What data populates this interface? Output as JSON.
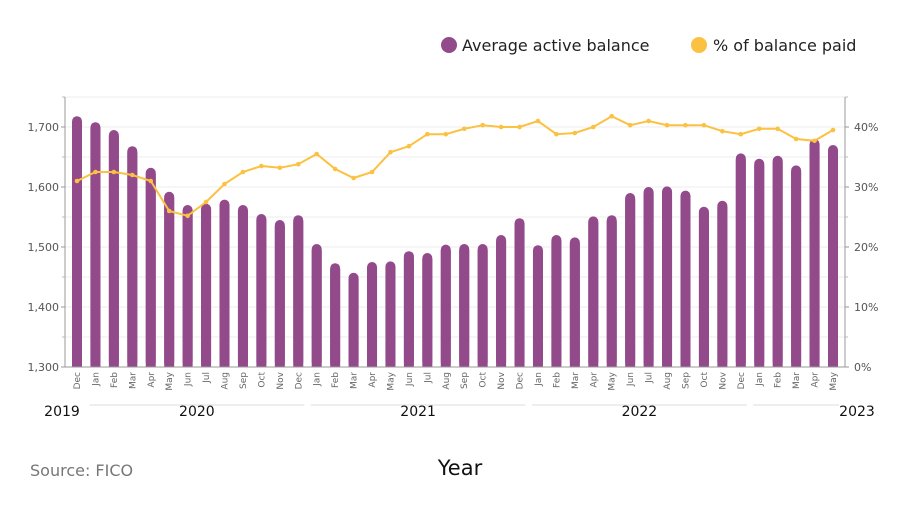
{
  "chart_data": {
    "type": "bar+line",
    "xlabel": "Year",
    "source": "Source: FICO",
    "legend_position": "top-right",
    "grid": true,
    "months": [
      "Dec",
      "Jan",
      "Feb",
      "Mar",
      "Apr",
      "May",
      "Jun",
      "Jul",
      "Aug",
      "Sep",
      "Oct",
      "Nov",
      "Dec",
      "Jan",
      "Feb",
      "Mar",
      "Apr",
      "May",
      "Jun",
      "Jul",
      "Aug",
      "Sep",
      "Oct",
      "Nov",
      "Dec",
      "Jan",
      "Feb",
      "Mar",
      "Apr",
      "May",
      "Jun",
      "Jul",
      "Aug",
      "Sep",
      "Oct",
      "Nov",
      "Dec",
      "Jan",
      "Feb",
      "Mar",
      "Apr",
      "May"
    ],
    "years": [
      {
        "label": "2019",
        "start": 0,
        "end": 0
      },
      {
        "label": "2020",
        "start": 1,
        "end": 12
      },
      {
        "label": "2021",
        "start": 13,
        "end": 24
      },
      {
        "label": "2022",
        "start": 25,
        "end": 36
      },
      {
        "label": "2023",
        "start": 37,
        "end": 41
      }
    ],
    "left_axis": {
      "min": 1300,
      "max": 1700,
      "ticks": [
        "1,300",
        "1,400",
        "1,500",
        "1,600",
        "1,700"
      ],
      "tick_values": [
        1300,
        1400,
        1500,
        1600,
        1700
      ]
    },
    "right_axis": {
      "min": 0,
      "max": 40,
      "ticks": [
        "0%",
        "10%",
        "20%",
        "30%",
        "40%"
      ],
      "tick_values": [
        0,
        10,
        20,
        30,
        40
      ]
    },
    "series": [
      {
        "name": "Average active balance",
        "type": "bar",
        "axis": "left",
        "color": "#924a8a",
        "values": [
          1718,
          1708,
          1695,
          1668,
          1632,
          1592,
          1570,
          1572,
          1579,
          1570,
          1555,
          1545,
          1553,
          1505,
          1473,
          1457,
          1475,
          1476,
          1493,
          1490,
          1504,
          1505,
          1505,
          1520,
          1548,
          1503,
          1520,
          1516,
          1551,
          1553,
          1590,
          1600,
          1601,
          1594,
          1567,
          1577,
          1656,
          1647,
          1652,
          1636,
          1680,
          1670
        ]
      },
      {
        "name": "% of balance paid",
        "type": "line",
        "axis": "right",
        "color": "#fbc140",
        "values": [
          31,
          32.5,
          32.5,
          32,
          31,
          26,
          25.2,
          27.5,
          30.5,
          32.5,
          33.5,
          33.2,
          33.8,
          35.5,
          33,
          31.5,
          32.5,
          35.8,
          36.8,
          38.8,
          38.8,
          39.7,
          40.3,
          40,
          40,
          41,
          38.8,
          39,
          40,
          41.8,
          40.3,
          41,
          40.3,
          40.3,
          40.3,
          39.3,
          38.8,
          39.7,
          39.7,
          38,
          37.7,
          39.5
        ]
      }
    ]
  }
}
